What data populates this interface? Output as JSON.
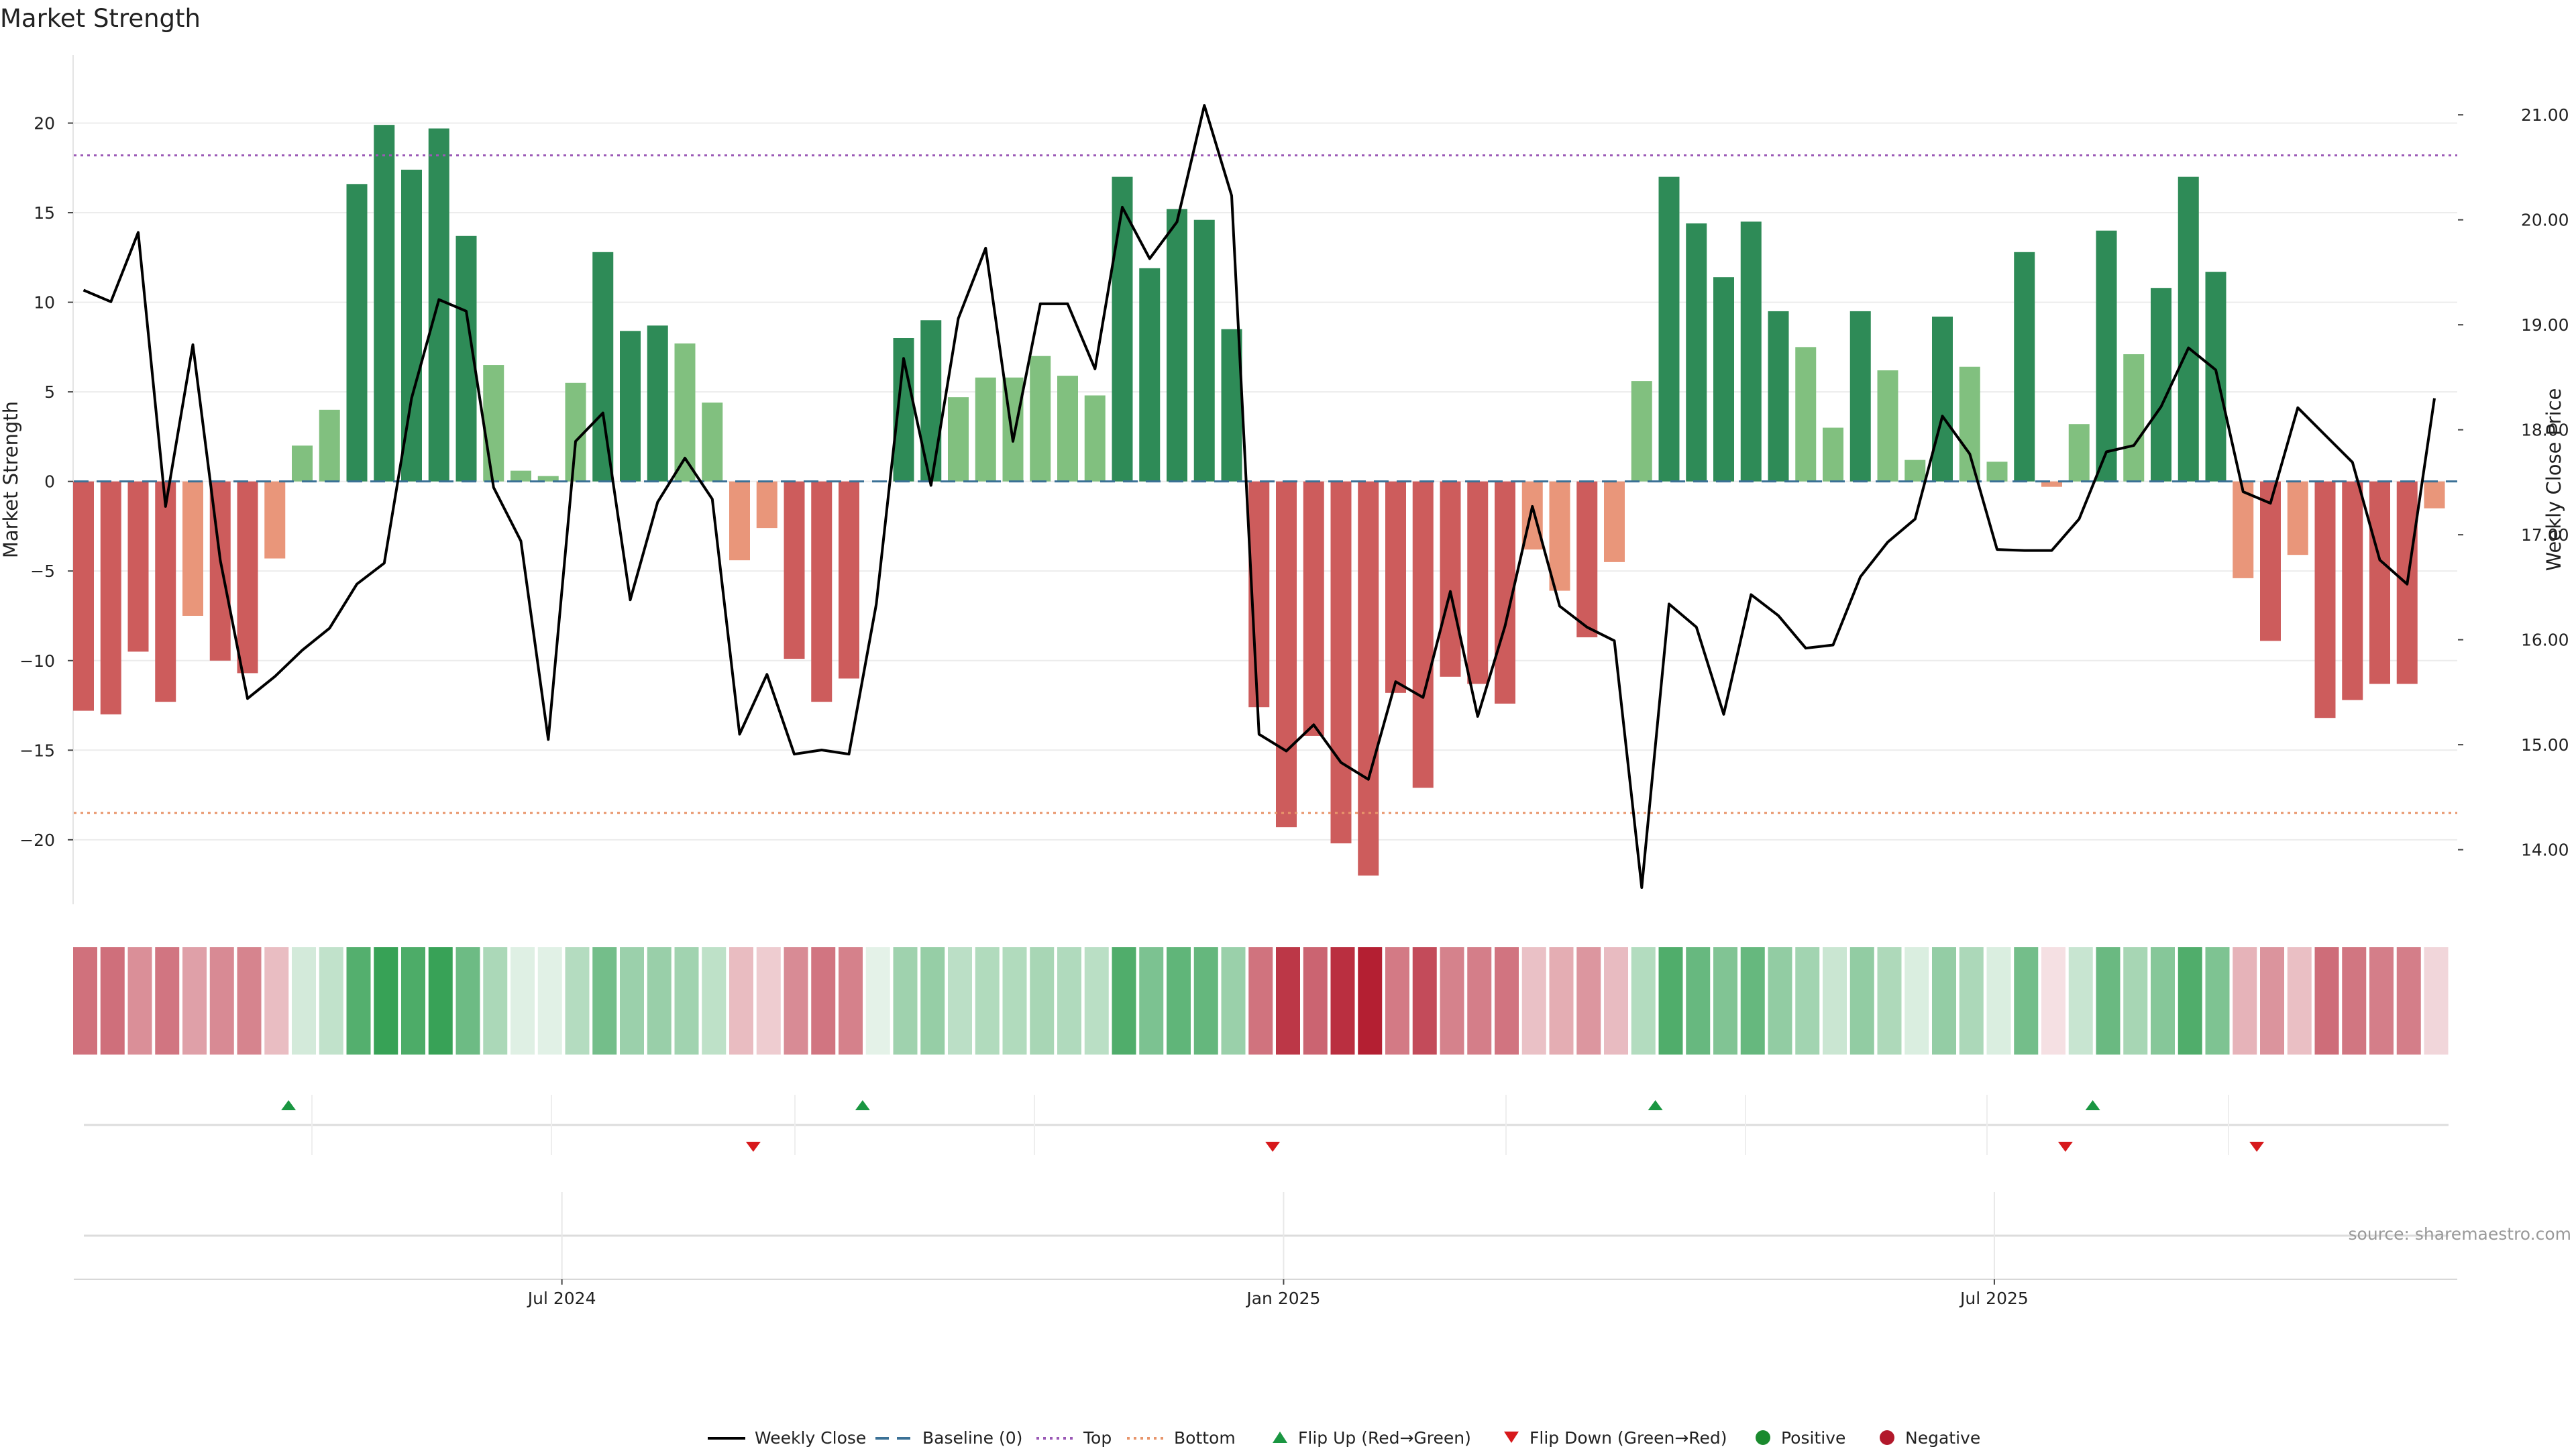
{
  "chart_data": {
    "type": "bar",
    "title": "Market Strength",
    "ylabel": "Market Strength",
    "y2label": "Weekly Close Price",
    "ylim": [
      -23.6,
      23.8
    ],
    "y2lim": [
      13.48,
      21.57
    ],
    "yticks": [
      20,
      15,
      10,
      5,
      0,
      -5,
      -10,
      -15,
      -20
    ],
    "ytick_labels": [
      "20",
      "15",
      "10",
      "5",
      "0",
      "−5",
      "−10",
      "−15",
      "−20"
    ],
    "y2ticks": [
      21,
      20,
      19,
      18,
      17,
      16,
      15,
      14
    ],
    "y2tick_labels": [
      "21.00",
      "20.00",
      "19.00",
      "18.00",
      "17.00",
      "16.00",
      "15.00",
      "14.00"
    ],
    "x_ticks": [
      {
        "label": "Jul 2024",
        "index": 17.5
      },
      {
        "label": "Jan 2025",
        "index": 43.9
      },
      {
        "label": "Jul 2025",
        "index": 69.9
      }
    ],
    "top_line": 18.2,
    "bottom_line": -18.5,
    "strength": [
      -12.8,
      -13.0,
      -9.5,
      -12.3,
      -7.5,
      -10.0,
      -10.7,
      -4.3,
      2.0,
      4.0,
      16.6,
      19.9,
      17.4,
      19.7,
      13.7,
      6.5,
      0.6,
      0.3,
      5.5,
      12.8,
      8.4,
      8.7,
      7.7,
      4.4,
      -4.4,
      -2.6,
      -9.9,
      -12.3,
      -11.0,
      0.0,
      8.0,
      9.0,
      4.7,
      5.8,
      5.8,
      7.0,
      5.9,
      4.8,
      17.0,
      11.9,
      15.2,
      14.6,
      8.5,
      -12.6,
      -19.3,
      -14.2,
      -20.2,
      -22.0,
      -11.8,
      -17.1,
      -10.9,
      -11.3,
      -12.4,
      -3.8,
      -6.1,
      -8.7,
      -4.5,
      5.6,
      17.0,
      14.4,
      11.4,
      14.5,
      9.5,
      7.5,
      3.0,
      9.5,
      6.2,
      1.2,
      9.2,
      6.4,
      1.1,
      12.8,
      -0.3,
      3.2,
      14.0,
      7.1,
      10.8,
      17.0,
      11.7,
      -5.4,
      -8.9,
      -4.1,
      -13.2,
      -12.2,
      -11.3,
      -11.3,
      -1.5
    ],
    "weekly_close": [
      19.33,
      19.22,
      19.88,
      17.27,
      18.81,
      16.76,
      15.44,
      15.65,
      15.9,
      16.11,
      16.53,
      16.73,
      18.3,
      19.24,
      19.13,
      17.45,
      16.94,
      15.05,
      17.89,
      18.16,
      16.38,
      17.31,
      17.73,
      17.34,
      15.1,
      15.67,
      14.91,
      14.95,
      14.91,
      16.34,
      18.68,
      17.47,
      19.06,
      19.73,
      17.89,
      19.2,
      19.2,
      18.58,
      20.12,
      19.63,
      19.98,
      21.09,
      20.23,
      15.1,
      14.94,
      15.19,
      14.83,
      14.67,
      15.6,
      15.45,
      16.46,
      15.27,
      16.13,
      17.27,
      16.32,
      16.12,
      15.99,
      13.64,
      16.34,
      16.12,
      15.29,
      16.43,
      16.23,
      15.92,
      15.95,
      16.6,
      16.93,
      17.15,
      18.13,
      17.77,
      16.86,
      16.85,
      16.85,
      17.15,
      17.79,
      17.85,
      18.22,
      18.78,
      18.57,
      17.41,
      17.3,
      18.21,
      17.95,
      17.69,
      16.76,
      16.53,
      18.3
    ],
    "flip_up": [
      7.5,
      28.5,
      57.5,
      73.5
    ],
    "flip_down": [
      24.5,
      43.5,
      72.5,
      79.5
    ],
    "legend": [
      {
        "label": "Weekly Close",
        "type": "line",
        "color": "#000000"
      },
      {
        "label": "Baseline (0)",
        "type": "dashed",
        "color": "#3b7196"
      },
      {
        "label": "Top",
        "type": "dotted",
        "color": "#9b59b6"
      },
      {
        "label": "Bottom",
        "type": "dotted",
        "color": "#e8956b"
      },
      {
        "label": "Flip Up (Red→Green)",
        "type": "tri-up",
        "color": "#1a9641"
      },
      {
        "label": "Flip Down (Green→Red)",
        "type": "tri-down",
        "color": "#d7191c"
      },
      {
        "label": "Positive",
        "type": "dot",
        "color": "#1a8a2e"
      },
      {
        "label": "Negative",
        "type": "dot",
        "color": "#b2182b"
      }
    ],
    "colors": {
      "pos_strong": "#2e8b57",
      "pos_weak": "#81c07f",
      "neg_strong": "#cd5c5c",
      "neg_weak": "#e9967a",
      "heat_pos": "#1e9641",
      "heat_neg": "#b2182b"
    }
  },
  "source": "source: sharemaestro.com"
}
